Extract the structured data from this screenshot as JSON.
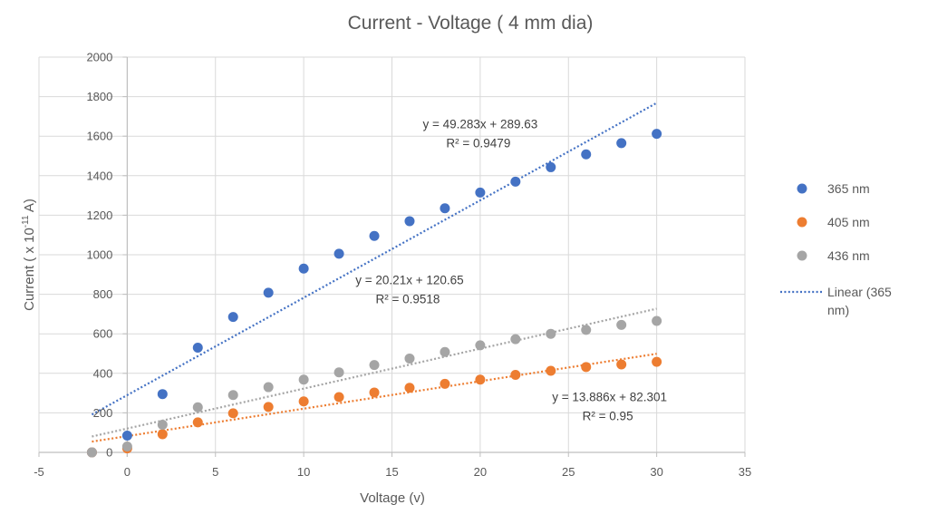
{
  "chart_data": {
    "type": "scatter",
    "title": "Current - Voltage ( 4 mm dia)",
    "xlabel": "Voltage (v)",
    "ylabel": "Current ( x 10⁻¹¹ A)",
    "xlim": [
      -5,
      35
    ],
    "ylim": [
      0,
      2000
    ],
    "xticks": [
      "-5",
      "0",
      "5",
      "10",
      "15",
      "20",
      "25",
      "30",
      "35"
    ],
    "yticks": [
      "0",
      "200",
      "400",
      "600",
      "800",
      "1000",
      "1200",
      "1400",
      "1600",
      "1800",
      "2000"
    ],
    "grid": true,
    "legend_position": "right",
    "series": [
      {
        "name": "365 nm",
        "color": "#4472C4",
        "x": [
          -2,
          0,
          2,
          4,
          6,
          8,
          10,
          12,
          14,
          16,
          18,
          20,
          22,
          24,
          26,
          28,
          30
        ],
        "y": [
          0,
          85,
          295,
          530,
          685,
          808,
          930,
          1005,
          1095,
          1170,
          1235,
          1315,
          1370,
          1443,
          1508,
          1565,
          1612
        ]
      },
      {
        "name": "405 nm",
        "color": "#ED7D31",
        "x": [
          -2,
          0,
          2,
          4,
          6,
          8,
          10,
          12,
          14,
          16,
          18,
          20,
          22,
          24,
          26,
          28,
          30
        ],
        "y": [
          0,
          20,
          92,
          152,
          198,
          230,
          258,
          280,
          303,
          327,
          347,
          368,
          392,
          413,
          432,
          445,
          458
        ]
      },
      {
        "name": "436 nm",
        "color": "#A5A5A5",
        "x": [
          -2,
          0,
          2,
          4,
          6,
          8,
          10,
          12,
          14,
          16,
          18,
          20,
          22,
          24,
          26,
          28,
          30
        ],
        "y": [
          0,
          30,
          140,
          228,
          290,
          330,
          368,
          405,
          442,
          475,
          508,
          542,
          573,
          600,
          620,
          645,
          665
        ]
      }
    ],
    "trendlines": [
      {
        "series": "365 nm",
        "legend_label": "Linear (365 nm)",
        "slope": 49.283,
        "intercept": 289.63,
        "equation": "y = 49.283x + 289.63",
        "r2": "R² = 0.9479",
        "x_range": [
          -2,
          30
        ],
        "color": "#4472C4"
      },
      {
        "series": "436 nm",
        "slope": 20.21,
        "intercept": 120.65,
        "equation": "y = 20.21x + 120.65",
        "r2": "R² = 0.9518",
        "x_range": [
          -2,
          30
        ],
        "color": "#A5A5A5"
      },
      {
        "series": "405 nm",
        "slope": 13.886,
        "intercept": 82.301,
        "equation": "y = 13.886x + 82.301",
        "r2": "R² = 0.95",
        "x_range": [
          -2,
          30
        ],
        "color": "#ED7D31"
      }
    ],
    "legend": [
      {
        "label": "365 nm",
        "kind": "marker",
        "color": "#4472C4"
      },
      {
        "label": "405 nm",
        "kind": "marker",
        "color": "#ED7D31"
      },
      {
        "label": "436 nm",
        "kind": "marker",
        "color": "#A5A5A5"
      },
      {
        "label_lines": [
          "Linear (365",
          "nm)"
        ],
        "kind": "line",
        "color": "#4472C4"
      }
    ]
  }
}
